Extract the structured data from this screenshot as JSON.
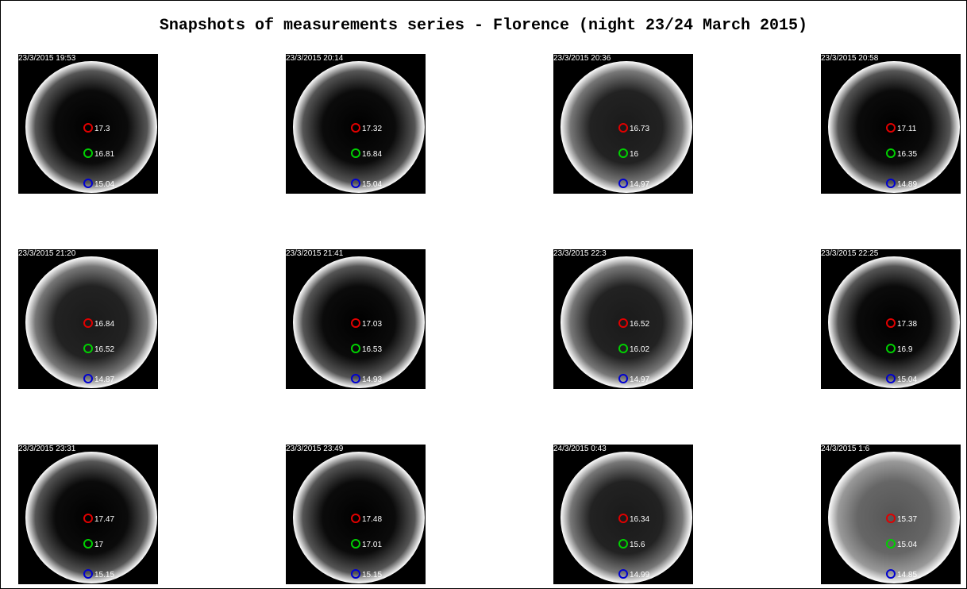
{
  "title": "Snapshots of measurements series - Florence (night 23/24 March 2015)",
  "panels": [
    {
      "time": "23/3/2015 19:53",
      "red": 17.3,
      "green": 16.81,
      "blue": 15.04
    },
    {
      "time": "23/3/2015 20:14",
      "red": 17.32,
      "green": 16.84,
      "blue": 15.04
    },
    {
      "time": "23/3/2015 20:36",
      "red": 16.73,
      "green": 16,
      "blue": 14.97
    },
    {
      "time": "23/3/2015 20:58",
      "red": 17.11,
      "green": 16.35,
      "blue": 14.89
    },
    {
      "time": "23/3/2015 21:20",
      "red": 16.84,
      "green": 16.52,
      "blue": 14.87
    },
    {
      "time": "23/3/2015 21:41",
      "red": 17.03,
      "green": 16.53,
      "blue": 14.93
    },
    {
      "time": "23/3/2015 22:3",
      "red": 16.52,
      "green": 16.02,
      "blue": 14.97
    },
    {
      "time": "23/3/2015 22:25",
      "red": 17.38,
      "green": 16.9,
      "blue": 15.04
    },
    {
      "time": "23/3/2015 23:31",
      "red": 17.47,
      "green": 17,
      "blue": 15.15
    },
    {
      "time": "23/3/2015 23:49",
      "red": 17.48,
      "green": 17.01,
      "blue": 15.15
    },
    {
      "time": "24/3/2015 0:43",
      "red": 16.34,
      "green": 15.6,
      "blue": 14.99
    },
    {
      "time": "24/3/2015 1:6",
      "red": 15.37,
      "green": 15.04,
      "blue": 14.85
    }
  ]
}
